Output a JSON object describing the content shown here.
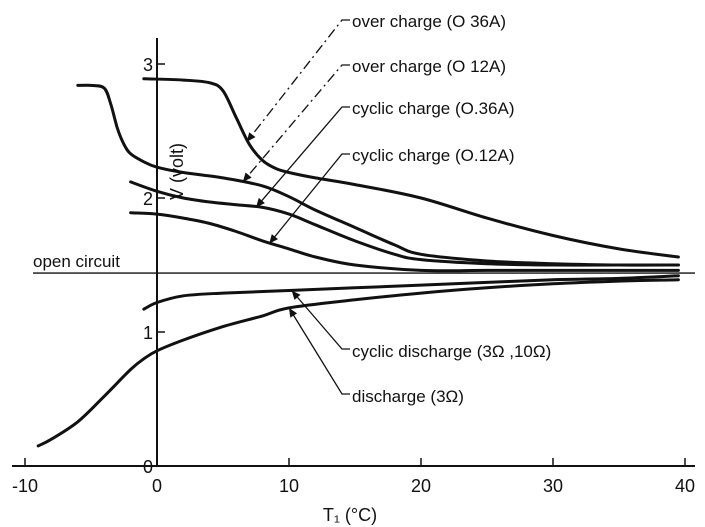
{
  "chart_data": {
    "type": "line",
    "xlabel": "T₁ (°C)",
    "ylabel": "V (volt)",
    "xlim": [
      -10,
      40
    ],
    "ylim": [
      0,
      3.2
    ],
    "x_ticks": [
      "-10",
      "0",
      "10",
      "20",
      "30",
      "40"
    ],
    "y_ticks": [
      "0",
      "1",
      "2",
      "3"
    ],
    "reference_lines": [
      {
        "label": "open circuit",
        "y": 1.44
      }
    ],
    "series": [
      {
        "name": "over charge (0 36A)",
        "x": [
          -1,
          2,
          4,
          5,
          6,
          7,
          8,
          9,
          10,
          12,
          15,
          20,
          25,
          30,
          35,
          39.5
        ],
        "y": [
          2.89,
          2.88,
          2.86,
          2.8,
          2.6,
          2.4,
          2.28,
          2.22,
          2.19,
          2.15,
          2.1,
          2.0,
          1.85,
          1.72,
          1.62,
          1.56
        ]
      },
      {
        "name": "over charge (0 12A)",
        "x": [
          -6,
          -5,
          -4,
          -3.5,
          -3,
          -2.5,
          -2,
          -1,
          0,
          2,
          5,
          8,
          10,
          12,
          15,
          18,
          20,
          25,
          30,
          35,
          39.5
        ],
        "y": [
          2.84,
          2.84,
          2.82,
          2.7,
          2.52,
          2.4,
          2.33,
          2.27,
          2.23,
          2.19,
          2.15,
          2.09,
          2.01,
          1.91,
          1.78,
          1.65,
          1.58,
          1.53,
          1.51,
          1.5,
          1.5
        ]
      },
      {
        "name": "cyclic charge (0.36A)",
        "x": [
          -2,
          0,
          2,
          4,
          6,
          8,
          10,
          12,
          15,
          18,
          20,
          25,
          30,
          35,
          39.5
        ],
        "y": [
          2.12,
          2.05,
          2.0,
          1.97,
          1.95,
          1.93,
          1.88,
          1.8,
          1.68,
          1.58,
          1.54,
          1.51,
          1.5,
          1.5,
          1.5
        ]
      },
      {
        "name": "cyclic charge (0.12A)",
        "x": [
          -2,
          0,
          2,
          4,
          6,
          8,
          10,
          12,
          15,
          20,
          25,
          30,
          35,
          39.5
        ],
        "y": [
          1.89,
          1.88,
          1.85,
          1.81,
          1.75,
          1.68,
          1.62,
          1.56,
          1.5,
          1.46,
          1.46,
          1.46,
          1.46,
          1.46
        ]
      },
      {
        "name": "cyclic discharge (3Ω ,10Ω)",
        "x": [
          -1,
          0,
          2,
          5,
          10,
          15,
          20,
          25,
          30,
          35,
          39.5
        ],
        "y": [
          1.17,
          1.22,
          1.27,
          1.29,
          1.31,
          1.33,
          1.35,
          1.37,
          1.39,
          1.4,
          1.42
        ]
      },
      {
        "name": "discharge (3Ω)",
        "x": [
          -9,
          -8,
          -6,
          -4,
          -2,
          -1,
          0,
          2,
          5,
          8,
          10,
          15,
          20,
          25,
          30,
          35,
          39.5
        ],
        "y": [
          0.15,
          0.2,
          0.33,
          0.52,
          0.72,
          0.8,
          0.86,
          0.94,
          1.04,
          1.12,
          1.18,
          1.24,
          1.29,
          1.33,
          1.36,
          1.38,
          1.39
        ]
      }
    ],
    "annotations": [
      {
        "text": "over charge (O 36A)",
        "target_series": 0
      },
      {
        "text": "over charge (O 12A)",
        "target_series": 1
      },
      {
        "text": "cyclic charge (O.36A)",
        "target_series": 2
      },
      {
        "text": "cyclic charge (O.12A)",
        "target_series": 3
      },
      {
        "text": "cyclic discharge (3Ω ,10Ω)",
        "target_series": 4
      },
      {
        "text": "discharge (3Ω)",
        "target_series": 5
      }
    ]
  }
}
